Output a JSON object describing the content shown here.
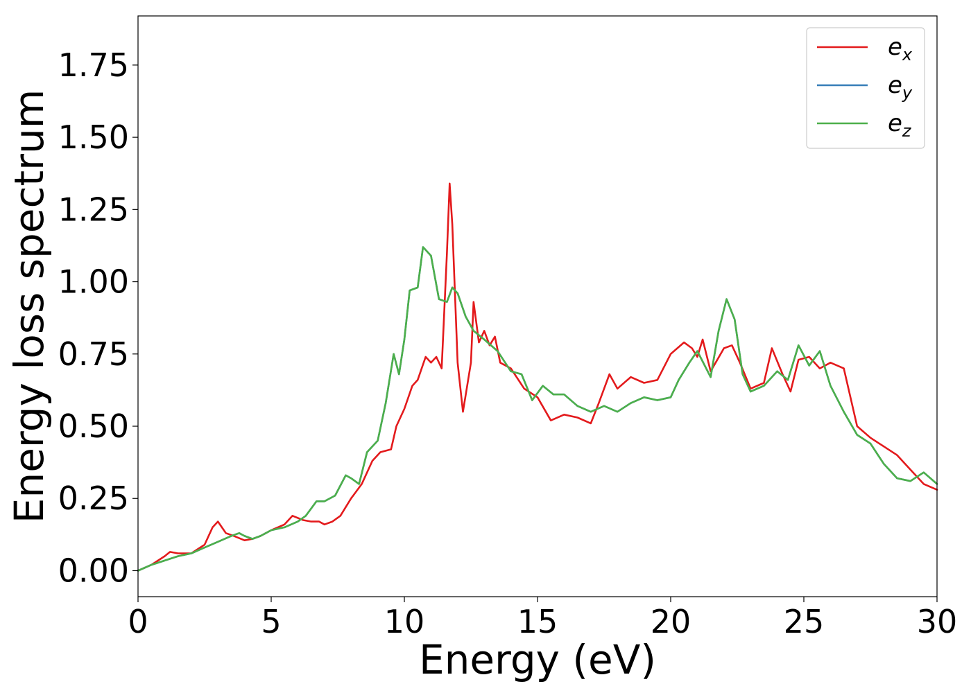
{
  "chart_data": {
    "type": "line",
    "xlabel": "Energy (eV)",
    "ylabel": "Energy loss spectrum",
    "xlim": [
      0,
      30
    ],
    "ylim": [
      -0.09,
      1.92
    ],
    "xticks": [
      0,
      5,
      10,
      15,
      20,
      25,
      30
    ],
    "xtick_labels": [
      "0",
      "5",
      "10",
      "15",
      "20",
      "25",
      "30"
    ],
    "yticks": [
      0.0,
      0.25,
      0.5,
      0.75,
      1.0,
      1.25,
      1.5,
      1.75
    ],
    "ytick_labels": [
      "0.00",
      "0.25",
      "0.50",
      "0.75",
      "1.00",
      "1.25",
      "1.50",
      "1.75"
    ],
    "grid": false,
    "legend_position": "top-right",
    "series": [
      {
        "name": "e_x",
        "legend_main": "e",
        "legend_sub": "x",
        "color": "#e31a1c",
        "x": [
          0,
          0.5,
          1.0,
          1.2,
          1.5,
          2.0,
          2.5,
          2.8,
          3.0,
          3.3,
          3.6,
          4.0,
          4.3,
          4.6,
          5.0,
          5.5,
          5.8,
          6.2,
          6.5,
          6.8,
          7.0,
          7.3,
          7.6,
          8.0,
          8.4,
          8.8,
          9.1,
          9.5,
          9.7,
          10.0,
          10.3,
          10.5,
          10.8,
          11.0,
          11.2,
          11.4,
          11.6,
          11.7,
          11.8,
          12.0,
          12.2,
          12.5,
          12.6,
          12.8,
          13.0,
          13.2,
          13.4,
          13.6,
          14.0,
          14.5,
          15.0,
          15.5,
          16.0,
          16.5,
          17.0,
          17.3,
          17.7,
          18.0,
          18.5,
          19.0,
          19.5,
          20.0,
          20.5,
          20.8,
          21.0,
          21.2,
          21.5,
          22.0,
          22.3,
          22.6,
          23.0,
          23.5,
          23.8,
          24.2,
          24.5,
          24.8,
          25.2,
          25.6,
          26.0,
          26.5,
          27.0,
          27.5,
          28.0,
          28.5,
          29.0,
          29.5,
          30.0
        ],
        "y": [
          0.0,
          0.02,
          0.05,
          0.065,
          0.06,
          0.06,
          0.09,
          0.15,
          0.17,
          0.13,
          0.12,
          0.105,
          0.11,
          0.12,
          0.14,
          0.16,
          0.19,
          0.175,
          0.17,
          0.17,
          0.16,
          0.17,
          0.19,
          0.25,
          0.3,
          0.38,
          0.41,
          0.42,
          0.5,
          0.56,
          0.64,
          0.66,
          0.74,
          0.72,
          0.74,
          0.7,
          1.1,
          1.34,
          1.2,
          0.72,
          0.55,
          0.72,
          0.93,
          0.79,
          0.83,
          0.78,
          0.81,
          0.72,
          0.7,
          0.63,
          0.6,
          0.52,
          0.54,
          0.53,
          0.51,
          0.58,
          0.68,
          0.63,
          0.67,
          0.65,
          0.66,
          0.75,
          0.79,
          0.77,
          0.74,
          0.8,
          0.69,
          0.77,
          0.78,
          0.72,
          0.63,
          0.65,
          0.77,
          0.68,
          0.62,
          0.73,
          0.74,
          0.7,
          0.72,
          0.7,
          0.5,
          0.46,
          0.43,
          0.4,
          0.35,
          0.3,
          0.28
        ]
      },
      {
        "name": "e_y",
        "legend_main": "e",
        "legend_sub": "y",
        "color": "#377eb8",
        "x": [
          0,
          0.5,
          1.0,
          1.5,
          2.0,
          2.5,
          3.0,
          3.5,
          3.8,
          4.0,
          4.3,
          4.6,
          5.0,
          5.5,
          6.0,
          6.3,
          6.7,
          7.0,
          7.4,
          7.8,
          8.0,
          8.3,
          8.6,
          9.0,
          9.3,
          9.6,
          9.8,
          10.0,
          10.2,
          10.5,
          10.7,
          11.0,
          11.3,
          11.6,
          11.8,
          12.0,
          12.3,
          12.6,
          13.0,
          13.5,
          14.0,
          14.4,
          14.8,
          15.2,
          15.6,
          16.0,
          16.5,
          17.0,
          17.5,
          18.0,
          18.5,
          19.0,
          19.5,
          20.0,
          20.3,
          20.7,
          21.0,
          21.5,
          21.8,
          22.1,
          22.4,
          22.7,
          23.0,
          23.5,
          24.0,
          24.4,
          24.8,
          25.2,
          25.6,
          26.0,
          26.5,
          27.0,
          27.5,
          28.0,
          28.5,
          29.0,
          29.5,
          30.0
        ],
        "y": [
          0.0,
          0.02,
          0.035,
          0.05,
          0.06,
          0.08,
          0.1,
          0.12,
          0.13,
          0.12,
          0.11,
          0.12,
          0.14,
          0.15,
          0.17,
          0.19,
          0.24,
          0.24,
          0.26,
          0.33,
          0.32,
          0.3,
          0.41,
          0.45,
          0.58,
          0.75,
          0.68,
          0.8,
          0.97,
          0.98,
          1.12,
          1.09,
          0.94,
          0.93,
          0.98,
          0.96,
          0.88,
          0.83,
          0.8,
          0.76,
          0.69,
          0.68,
          0.59,
          0.64,
          0.61,
          0.61,
          0.57,
          0.55,
          0.57,
          0.55,
          0.58,
          0.6,
          0.59,
          0.6,
          0.66,
          0.72,
          0.76,
          0.67,
          0.83,
          0.94,
          0.87,
          0.68,
          0.62,
          0.64,
          0.69,
          0.66,
          0.78,
          0.71,
          0.76,
          0.64,
          0.55,
          0.47,
          0.44,
          0.37,
          0.32,
          0.31,
          0.34,
          0.3
        ]
      },
      {
        "name": "e_z",
        "legend_main": "e",
        "legend_sub": "z",
        "color": "#4daf4a",
        "x": [
          0,
          0.5,
          1.0,
          1.5,
          2.0,
          2.5,
          3.0,
          3.5,
          3.8,
          4.0,
          4.3,
          4.6,
          5.0,
          5.5,
          6.0,
          6.3,
          6.7,
          7.0,
          7.4,
          7.8,
          8.0,
          8.3,
          8.6,
          9.0,
          9.3,
          9.6,
          9.8,
          10.0,
          10.2,
          10.5,
          10.7,
          11.0,
          11.3,
          11.6,
          11.8,
          12.0,
          12.3,
          12.6,
          13.0,
          13.5,
          14.0,
          14.4,
          14.8,
          15.2,
          15.6,
          16.0,
          16.5,
          17.0,
          17.5,
          18.0,
          18.5,
          19.0,
          19.5,
          20.0,
          20.3,
          20.7,
          21.0,
          21.5,
          21.8,
          22.1,
          22.4,
          22.7,
          23.0,
          23.5,
          24.0,
          24.4,
          24.8,
          25.2,
          25.6,
          26.0,
          26.5,
          27.0,
          27.5,
          28.0,
          28.5,
          29.0,
          29.5,
          30.0
        ],
        "y": [
          0.0,
          0.02,
          0.035,
          0.05,
          0.06,
          0.08,
          0.1,
          0.12,
          0.13,
          0.12,
          0.11,
          0.12,
          0.14,
          0.15,
          0.17,
          0.19,
          0.24,
          0.24,
          0.26,
          0.33,
          0.32,
          0.3,
          0.41,
          0.45,
          0.58,
          0.75,
          0.68,
          0.8,
          0.97,
          0.98,
          1.12,
          1.09,
          0.94,
          0.93,
          0.98,
          0.96,
          0.88,
          0.83,
          0.8,
          0.76,
          0.69,
          0.68,
          0.59,
          0.64,
          0.61,
          0.61,
          0.57,
          0.55,
          0.57,
          0.55,
          0.58,
          0.6,
          0.59,
          0.6,
          0.66,
          0.72,
          0.76,
          0.67,
          0.83,
          0.94,
          0.87,
          0.68,
          0.62,
          0.64,
          0.69,
          0.66,
          0.78,
          0.71,
          0.76,
          0.64,
          0.55,
          0.47,
          0.44,
          0.37,
          0.32,
          0.31,
          0.34,
          0.3
        ]
      }
    ]
  }
}
